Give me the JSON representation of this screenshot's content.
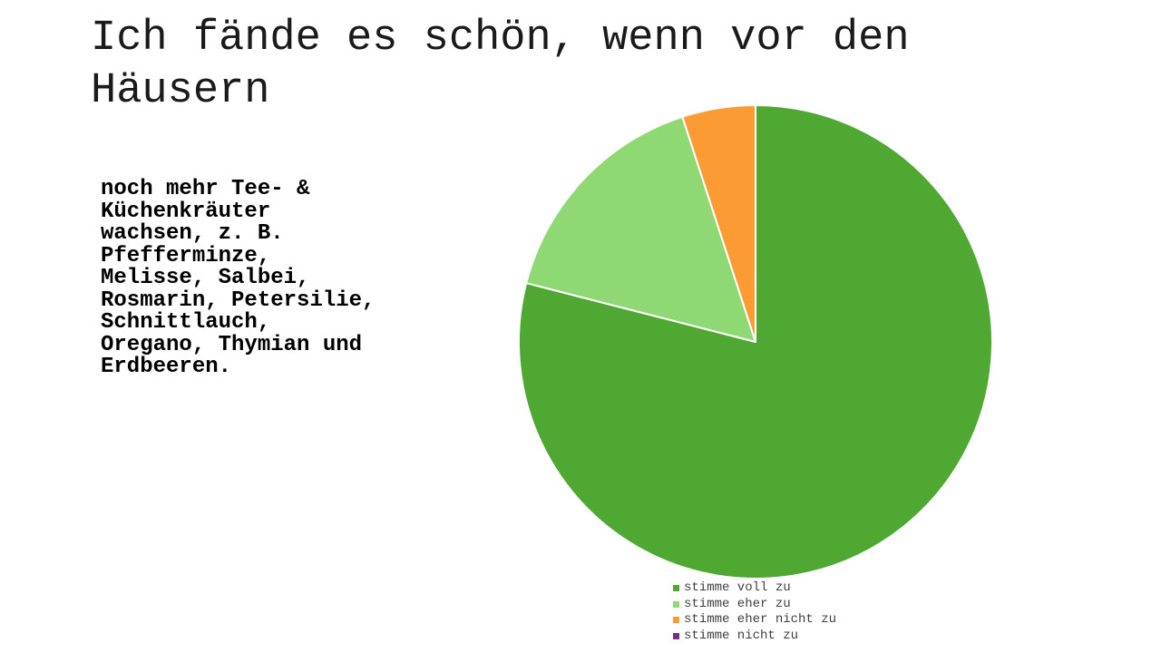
{
  "slide": {
    "title": "Ich fände es schön, wenn vor den Häusern",
    "statement": "noch mehr Tee- &\nKüchenkräuter\nwachsen, z. B.\nPfefferminze,\nMelisse, Salbei,\nRosmarin, Petersilie,\nSchnittlauch,\nOregano, Thymian und\nErdbeeren."
  },
  "chart_data": {
    "type": "pie",
    "title": "",
    "categories": [
      "stimme voll zu",
      "stimme eher zu",
      "stimme eher nicht zu",
      "stimme nicht zu"
    ],
    "values": [
      79,
      16,
      5,
      0
    ],
    "colors": [
      "#4fa832",
      "#8fd974",
      "#fc9a33",
      "#7b2d8e"
    ],
    "start_angle_deg": 0,
    "direction": "clockwise",
    "legend_position": "bottom"
  }
}
